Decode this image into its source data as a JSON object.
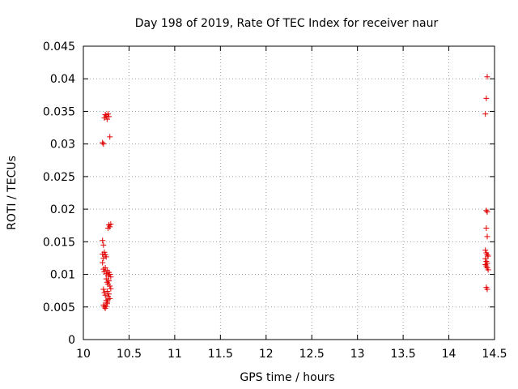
{
  "chart_data": {
    "type": "scatter",
    "title": "Day 198 of 2019, Rate Of TEC Index for receiver naur",
    "xlabel": "GPS time / hours",
    "ylabel": "ROTI / TECUs",
    "xlim": [
      10,
      14.5
    ],
    "ylim": [
      0,
      0.045
    ],
    "x_ticks": [
      "10",
      "10.5",
      "11",
      "11.5",
      "12",
      "12.5",
      "13",
      "13.5",
      "14",
      "14.5"
    ],
    "y_ticks": [
      "0",
      "0.005",
      "0.01",
      "0.015",
      "0.02",
      "0.025",
      "0.03",
      "0.035",
      "0.04",
      "0.045"
    ],
    "grid": true,
    "marker": "+",
    "color": "#e00000",
    "series": [
      {
        "name": "ROTI",
        "points": [
          [
            10.21,
            0.0302
          ],
          [
            10.22,
            0.03
          ],
          [
            10.23,
            0.034
          ],
          [
            10.24,
            0.0345
          ],
          [
            10.25,
            0.0343
          ],
          [
            10.26,
            0.0338
          ],
          [
            10.27,
            0.0346
          ],
          [
            10.28,
            0.0342
          ],
          [
            10.29,
            0.0311
          ],
          [
            10.27,
            0.0171
          ],
          [
            10.28,
            0.0176
          ],
          [
            10.29,
            0.0173
          ],
          [
            10.3,
            0.0177
          ],
          [
            10.21,
            0.0152
          ],
          [
            10.22,
            0.0145
          ],
          [
            10.21,
            0.0131
          ],
          [
            10.22,
            0.0125
          ],
          [
            10.23,
            0.0134
          ],
          [
            10.24,
            0.013
          ],
          [
            10.25,
            0.0127
          ],
          [
            10.21,
            0.0118
          ],
          [
            10.22,
            0.0108
          ],
          [
            10.23,
            0.0104
          ],
          [
            10.24,
            0.011
          ],
          [
            10.25,
            0.0101
          ],
          [
            10.26,
            0.0106
          ],
          [
            10.27,
            0.0098
          ],
          [
            10.28,
            0.0103
          ],
          [
            10.29,
            0.01
          ],
          [
            10.3,
            0.0096
          ],
          [
            10.25,
            0.0093
          ],
          [
            10.26,
            0.0088
          ],
          [
            10.27,
            0.0085
          ],
          [
            10.28,
            0.009
          ],
          [
            10.29,
            0.0082
          ],
          [
            10.3,
            0.0078
          ],
          [
            10.22,
            0.0077
          ],
          [
            10.23,
            0.0072
          ],
          [
            10.24,
            0.0068
          ],
          [
            10.26,
            0.0074
          ],
          [
            10.27,
            0.0066
          ],
          [
            10.28,
            0.007
          ],
          [
            10.29,
            0.0063
          ],
          [
            10.25,
            0.006
          ],
          [
            10.26,
            0.0057
          ],
          [
            10.22,
            0.0053
          ],
          [
            10.23,
            0.005
          ],
          [
            10.24,
            0.0048
          ],
          [
            10.25,
            0.0051
          ],
          [
            10.26,
            0.0055
          ],
          [
            10.27,
            0.0062
          ],
          [
            14.42,
            0.0403
          ],
          [
            14.41,
            0.037
          ],
          [
            14.4,
            0.0346
          ],
          [
            14.41,
            0.0198
          ],
          [
            14.42,
            0.0196
          ],
          [
            14.41,
            0.0171
          ],
          [
            14.42,
            0.0158
          ],
          [
            14.4,
            0.0137
          ],
          [
            14.41,
            0.0133
          ],
          [
            14.42,
            0.013
          ],
          [
            14.43,
            0.0128
          ],
          [
            14.4,
            0.0124
          ],
          [
            14.41,
            0.012
          ],
          [
            14.42,
            0.0117
          ],
          [
            14.41,
            0.0113
          ],
          [
            14.42,
            0.011
          ],
          [
            14.43,
            0.0107
          ],
          [
            14.4,
            0.0115
          ],
          [
            14.41,
            0.008
          ],
          [
            14.42,
            0.0077
          ]
        ]
      }
    ]
  }
}
